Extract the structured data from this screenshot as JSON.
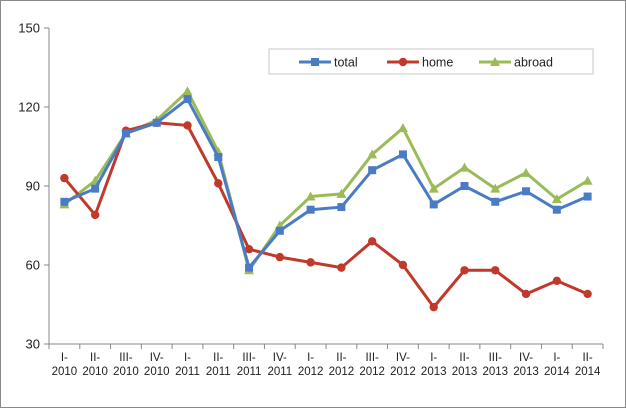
{
  "chart_data": {
    "type": "line",
    "title": "",
    "xlabel": "",
    "ylabel": "",
    "ylim": [
      30,
      150
    ],
    "yticks": [
      30,
      60,
      90,
      120,
      150
    ],
    "grid": false,
    "legend_position": "top-right",
    "categories": [
      [
        "I-",
        "2010"
      ],
      [
        "II-",
        "2010"
      ],
      [
        "III-",
        "2010"
      ],
      [
        "IV-",
        "2010"
      ],
      [
        "I-",
        "2011"
      ],
      [
        "II-",
        "2011"
      ],
      [
        "III-",
        "2011"
      ],
      [
        "IV-",
        "2011"
      ],
      [
        "I-",
        "2012"
      ],
      [
        "II-",
        "2012"
      ],
      [
        "III-",
        "2012"
      ],
      [
        "IV-",
        "2012"
      ],
      [
        "I-",
        "2013"
      ],
      [
        "II-",
        "2013"
      ],
      [
        "III-",
        "2013"
      ],
      [
        "IV-",
        "2013"
      ],
      [
        "I-",
        "2014"
      ],
      [
        "II-",
        "2014"
      ]
    ],
    "series": [
      {
        "name": "total",
        "color": "#4a7cc4",
        "marker": "square",
        "values": [
          84,
          89,
          110,
          114,
          123,
          101,
          59,
          73,
          81,
          82,
          96,
          102,
          83,
          90,
          84,
          88,
          81,
          86
        ]
      },
      {
        "name": "home",
        "color": "#c0392b",
        "marker": "circle",
        "values": [
          93,
          79,
          111,
          114,
          113,
          91,
          66,
          63,
          61,
          59,
          69,
          60,
          44,
          58,
          58,
          49,
          54,
          49
        ]
      },
      {
        "name": "abroad",
        "color": "#9bbb59",
        "marker": "triangle",
        "values": [
          83,
          92,
          110,
          115,
          126,
          103,
          58,
          75,
          86,
          87,
          102,
          112,
          89,
          97,
          89,
          95,
          85,
          92
        ]
      }
    ]
  }
}
